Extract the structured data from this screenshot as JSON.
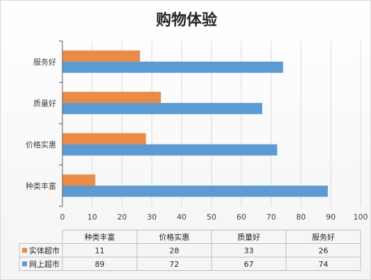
{
  "chart_data": {
    "type": "bar",
    "orientation": "horizontal",
    "title": "购物体验",
    "categories": [
      "种类丰富",
      "价格实惠",
      "质量好",
      "服务好"
    ],
    "series": [
      {
        "name": "实体超市",
        "color": "#ed8a43",
        "values": [
          11,
          28,
          33,
          26
        ]
      },
      {
        "name": "网上超市",
        "color": "#5b9bd5",
        "values": [
          89,
          72,
          67,
          74
        ]
      }
    ],
    "xlim": [
      0,
      100
    ],
    "x_ticks": [
      0,
      10,
      20,
      30,
      40,
      50,
      60,
      70,
      80,
      90,
      100
    ],
    "grid": true,
    "data_table": true
  }
}
